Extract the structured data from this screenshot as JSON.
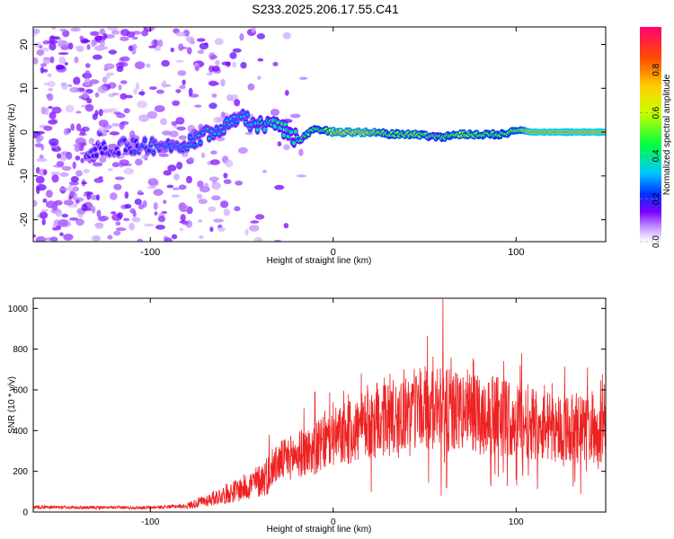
{
  "title": "S233.2025.206.17.55.C41",
  "chart_data": [
    {
      "type": "heatmap",
      "xlabel": "Height of straight line (km)",
      "ylabel": "Frequency (Hz)",
      "xlim": [
        -164,
        149
      ],
      "ylim": [
        -25,
        24
      ],
      "xticks": [
        -100,
        0,
        100
      ],
      "yticks": [
        -20,
        -10,
        0,
        10,
        20
      ],
      "grid": false,
      "colorbar": {
        "label": "Normalized spectral amplitude",
        "range": [
          0,
          1
        ],
        "ticks": [
          "0.0",
          "0.2",
          "0.4",
          "0.6",
          "0.8"
        ],
        "colors": [
          "#ffffff",
          "#7a00ff",
          "#0030ff",
          "#00c8ff",
          "#00ff40",
          "#c8ff00",
          "#ffd000",
          "#ff5000",
          "#ff0070"
        ]
      },
      "ridge": [
        {
          "x": -135,
          "y": -4.5,
          "a": 0.22
        },
        {
          "x": -120,
          "y": -3.5,
          "a": 0.22
        },
        {
          "x": -105,
          "y": -3,
          "a": 0.25
        },
        {
          "x": -90,
          "y": -3.5,
          "a": 0.28
        },
        {
          "x": -80,
          "y": -2.5,
          "a": 0.3
        },
        {
          "x": -70,
          "y": -0.5,
          "a": 0.32
        },
        {
          "x": -60,
          "y": 1.5,
          "a": 0.35
        },
        {
          "x": -50,
          "y": 4,
          "a": 0.32
        },
        {
          "x": -45,
          "y": 2,
          "a": 0.35
        },
        {
          "x": -40,
          "y": 1.5,
          "a": 0.4
        },
        {
          "x": -30,
          "y": 1.5,
          "a": 0.45
        },
        {
          "x": -22,
          "y": -1,
          "a": 0.4
        },
        {
          "x": -18,
          "y": -2,
          "a": 0.45
        },
        {
          "x": -12,
          "y": 0.5,
          "a": 0.6
        },
        {
          "x": -5,
          "y": 0.5,
          "a": 0.55
        },
        {
          "x": 0,
          "y": 0,
          "a": 0.8
        },
        {
          "x": 20,
          "y": 0,
          "a": 0.8
        },
        {
          "x": 30,
          "y": -0.5,
          "a": 0.6
        },
        {
          "x": 45,
          "y": -0.5,
          "a": 0.7
        },
        {
          "x": 55,
          "y": -1,
          "a": 0.5
        },
        {
          "x": 60,
          "y": -1,
          "a": 0.6
        },
        {
          "x": 70,
          "y": -0.5,
          "a": 0.7
        },
        {
          "x": 90,
          "y": -0.5,
          "a": 0.6
        },
        {
          "x": 103,
          "y": 0.5,
          "a": 0.7
        },
        {
          "x": 108,
          "y": 0,
          "a": 0.95
        },
        {
          "x": 149,
          "y": 0,
          "a": 0.95
        }
      ]
    },
    {
      "type": "line",
      "xlabel": "Height of straight line (km)",
      "ylabel": "SNR (10 * v/v)",
      "xlim": [
        -164,
        149
      ],
      "ylim": [
        0,
        1050
      ],
      "xticks": [
        -100,
        0,
        100
      ],
      "yticks": [
        0,
        200,
        400,
        600,
        800,
        1000
      ],
      "grid": false,
      "color": "#ee2222",
      "envelope": [
        {
          "x": -164,
          "y": 25
        },
        {
          "x": -140,
          "y": 22
        },
        {
          "x": -100,
          "y": 22
        },
        {
          "x": -80,
          "y": 30
        },
        {
          "x": -70,
          "y": 55
        },
        {
          "x": -60,
          "y": 85
        },
        {
          "x": -50,
          "y": 115
        },
        {
          "x": -40,
          "y": 155
        },
        {
          "x": -35,
          "y": 190
        },
        {
          "x": -30,
          "y": 245
        },
        {
          "x": -20,
          "y": 280
        },
        {
          "x": -10,
          "y": 310
        },
        {
          "x": 0,
          "y": 360
        },
        {
          "x": 10,
          "y": 390
        },
        {
          "x": 20,
          "y": 430
        },
        {
          "x": 30,
          "y": 480
        },
        {
          "x": 40,
          "y": 500
        },
        {
          "x": 50,
          "y": 500
        },
        {
          "x": 60,
          "y": 500
        },
        {
          "x": 70,
          "y": 490
        },
        {
          "x": 80,
          "y": 480
        },
        {
          "x": 90,
          "y": 470
        },
        {
          "x": 100,
          "y": 455
        },
        {
          "x": 110,
          "y": 440
        },
        {
          "x": 120,
          "y": 420
        },
        {
          "x": 130,
          "y": 410
        },
        {
          "x": 140,
          "y": 405
        },
        {
          "x": 149,
          "y": 400
        }
      ],
      "spikes": [
        {
          "x": -35,
          "y": 380
        },
        {
          "x": -16,
          "y": 510
        },
        {
          "x": -10,
          "y": 590
        },
        {
          "x": 0,
          "y": 540
        },
        {
          "x": 30,
          "y": 620
        },
        {
          "x": 48,
          "y": 690
        },
        {
          "x": 60,
          "y": 1045
        },
        {
          "x": 68,
          "y": 650
        },
        {
          "x": 90,
          "y": 660
        },
        {
          "x": 103,
          "y": 780
        },
        {
          "x": 120,
          "y": 560
        }
      ],
      "dips": [
        {
          "x": 59,
          "y": 80
        },
        {
          "x": 62,
          "y": 120
        },
        {
          "x": 100,
          "y": 160
        },
        {
          "x": 145,
          "y": 210
        }
      ]
    }
  ]
}
